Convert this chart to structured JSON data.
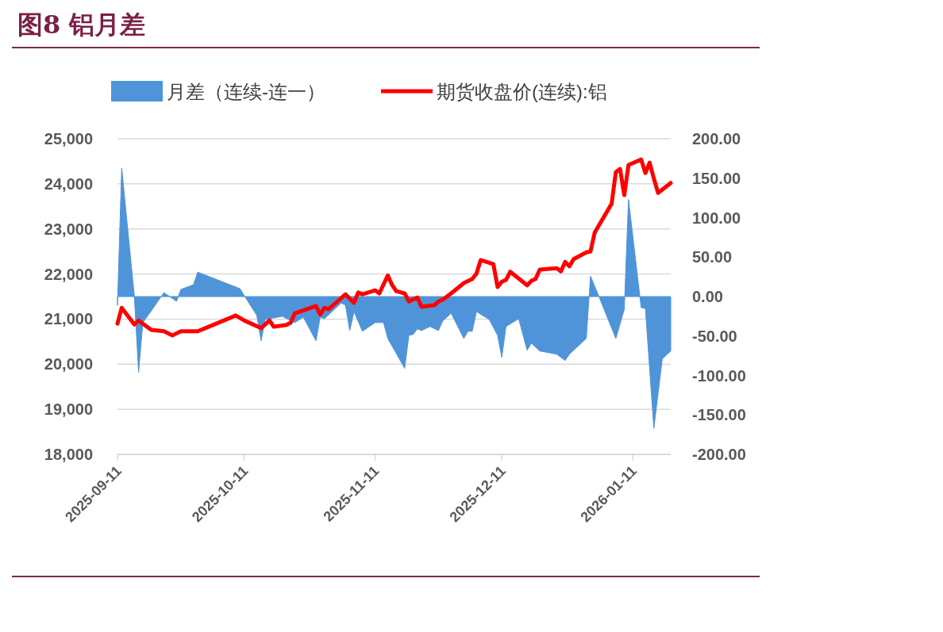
{
  "chart_data": {
    "type": "line",
    "title": "图8  铝月差",
    "legend": "top",
    "grid": "y",
    "xlim": [
      "2025-09-11",
      "2026-01-20"
    ],
    "xticks": [
      {
        "value": "2025-09-11",
        "label": "2025-09-11"
      },
      {
        "value": "2025-10-11",
        "label": "2025-10-11"
      },
      {
        "value": "2025-11-11",
        "label": "2025-11-11"
      },
      {
        "value": "2025-12-11",
        "label": "2025-12-11"
      },
      {
        "value": "2026-01-11",
        "label": "2026-01-11"
      }
    ],
    "ylim": [
      18000,
      25000
    ],
    "yticks": [
      {
        "value": 18000,
        "label": "18,000"
      },
      {
        "value": 19000,
        "label": "19,000"
      },
      {
        "value": 20000,
        "label": "20,000"
      },
      {
        "value": 21000,
        "label": "21,000"
      },
      {
        "value": 22000,
        "label": "22,000"
      },
      {
        "value": 23000,
        "label": "23,000"
      },
      {
        "value": 24000,
        "label": "24,000"
      },
      {
        "value": 25000,
        "label": "25,000"
      }
    ],
    "y2lim": [
      -200,
      200
    ],
    "y2ticks": [
      {
        "value": -200,
        "label": "-200.00"
      },
      {
        "value": -150,
        "label": "-150.00"
      },
      {
        "value": -100,
        "label": "-100.00"
      },
      {
        "value": -50,
        "label": "-50.00"
      },
      {
        "value": 0,
        "label": "0.00"
      },
      {
        "value": 50,
        "label": "50.00"
      },
      {
        "value": 100,
        "label": "100.00"
      },
      {
        "value": 150,
        "label": "150.00"
      },
      {
        "value": 200,
        "label": "200.00"
      }
    ],
    "series": [
      {
        "name": "月差（连续-连一）",
        "type": "area",
        "axis": "y2",
        "color": "#4f94d8",
        "x": [
          "2025-09-11",
          "2025-09-12",
          "2025-09-15",
          "2025-09-16",
          "2025-09-17",
          "2025-09-19",
          "2025-09-22",
          "2025-09-25",
          "2025-09-26",
          "2025-09-29",
          "2025-09-30",
          "2025-10-10",
          "2025-10-14",
          "2025-10-15",
          "2025-10-16",
          "2025-10-20",
          "2025-10-23",
          "2025-10-25",
          "2025-10-28",
          "2025-10-29",
          "2025-10-30",
          "2025-11-03",
          "2025-11-04",
          "2025-11-05",
          "2025-11-06",
          "2025-11-08",
          "2025-11-11",
          "2025-11-13",
          "2025-11-14",
          "2025-11-18",
          "2025-11-19",
          "2025-11-20",
          "2025-11-21",
          "2025-11-22",
          "2025-11-24",
          "2025-11-26",
          "2025-11-27",
          "2025-11-29",
          "2025-12-02",
          "2025-12-03",
          "2025-12-04",
          "2025-12-05",
          "2025-12-08",
          "2025-12-10",
          "2025-12-11",
          "2025-12-12",
          "2025-12-15",
          "2025-12-17",
          "2025-12-18",
          "2025-12-20",
          "2025-12-24",
          "2025-12-26",
          "2025-12-27",
          "2025-12-31",
          "2026-01-01",
          "2026-01-03",
          "2026-01-07",
          "2026-01-09",
          "2026-01-10",
          "2026-01-13",
          "2026-01-14",
          "2026-01-16",
          "2026-01-18",
          "2026-01-20"
        ],
        "values": [
          -11,
          163,
          0,
          -96,
          -33,
          -18,
          5,
          -6,
          9,
          15,
          31,
          10,
          -24,
          -56,
          -29,
          -25,
          -33,
          -26,
          -56,
          -26,
          -28,
          -8,
          -11,
          -43,
          -19,
          -44,
          -33,
          -33,
          -53,
          -91,
          -49,
          -48,
          -41,
          -43,
          -38,
          -43,
          -31,
          -21,
          -53,
          -44,
          -44,
          -19,
          -29,
          -49,
          -77,
          -38,
          -28,
          -68,
          -59,
          -69,
          -73,
          -81,
          -73,
          -53,
          26,
          0,
          -53,
          -16,
          123,
          -14,
          -15,
          -167,
          -79,
          -69
        ]
      },
      {
        "name": "期货收盘价(连续):铝",
        "type": "line",
        "color": "#ff0000",
        "x": [
          "2025-09-11",
          "2025-09-12",
          "2025-09-15",
          "2025-09-16",
          "2025-09-19",
          "2025-09-22",
          "2025-09-24",
          "2025-09-26",
          "2025-09-30",
          "2025-10-09",
          "2025-10-11",
          "2025-10-15",
          "2025-10-17",
          "2025-10-18",
          "2025-10-21",
          "2025-10-22",
          "2025-10-23",
          "2025-10-28",
          "2025-10-29",
          "2025-10-30",
          "2025-10-31",
          "2025-11-04",
          "2025-11-06",
          "2025-11-07",
          "2025-11-08",
          "2025-11-11",
          "2025-11-12",
          "2025-11-14",
          "2025-11-15",
          "2025-11-16",
          "2025-11-18",
          "2025-11-19",
          "2025-11-21",
          "2025-11-22",
          "2025-11-25",
          "2025-11-26",
          "2025-11-27",
          "2025-11-29",
          "2025-12-02",
          "2025-12-04",
          "2025-12-05",
          "2025-12-06",
          "2025-12-09",
          "2025-12-10",
          "2025-12-11",
          "2025-12-12",
          "2025-12-13",
          "2025-12-17",
          "2025-12-18",
          "2025-12-19",
          "2025-12-20",
          "2025-12-24",
          "2025-12-25",
          "2025-12-26",
          "2025-12-27",
          "2025-12-28",
          "2025-12-31",
          "2026-01-01",
          "2026-01-02",
          "2026-01-06",
          "2026-01-07",
          "2026-01-08",
          "2026-01-09",
          "2026-01-10",
          "2026-01-13",
          "2026-01-14",
          "2026-01-15",
          "2026-01-16",
          "2026-01-17",
          "2026-01-20"
        ],
        "values": [
          20900,
          21250,
          20880,
          20970,
          20760,
          20730,
          20640,
          20730,
          20730,
          21080,
          20970,
          20800,
          20970,
          20830,
          20870,
          20920,
          21130,
          21290,
          21100,
          21250,
          21220,
          21550,
          21360,
          21590,
          21550,
          21640,
          21570,
          21970,
          21760,
          21620,
          21570,
          21390,
          21480,
          21270,
          21310,
          21390,
          21430,
          21570,
          21800,
          21890,
          22010,
          22310,
          22220,
          21710,
          21830,
          21870,
          22050,
          21750,
          21850,
          21890,
          22100,
          22130,
          22060,
          22270,
          22170,
          22330,
          22480,
          22500,
          22920,
          23560,
          24260,
          24330,
          23750,
          24420,
          24540,
          24240,
          24470,
          24120,
          23800,
          24020
        ]
      }
    ]
  }
}
